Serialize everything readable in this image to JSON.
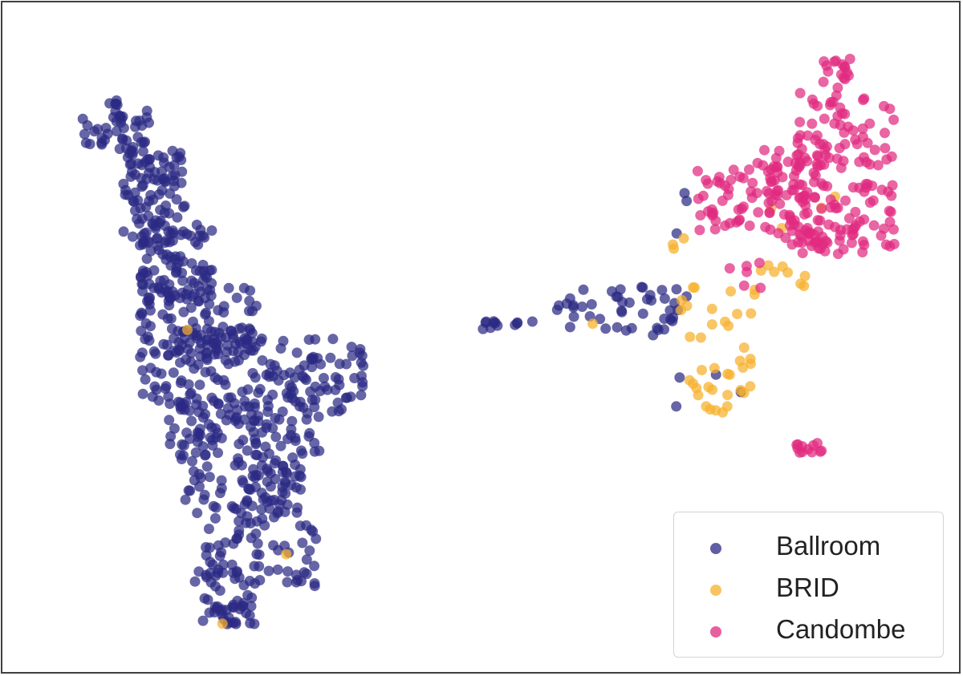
{
  "chart_data": {
    "type": "scatter",
    "title": "",
    "xlabel": "",
    "ylabel": "",
    "xlim": [
      0,
      100
    ],
    "ylim": [
      0,
      100
    ],
    "grid": false,
    "axes_ticks": false,
    "legend_position": "lower-right",
    "series": [
      {
        "name": "Ballroom",
        "color": "#2b2a84",
        "clusters": [
          {
            "x": [
              5,
              13
            ],
            "y": [
              80,
              88
            ],
            "n": 45
          },
          {
            "x": [
              10,
              17
            ],
            "y": [
              66,
              80
            ],
            "n": 90
          },
          {
            "x": [
              12,
              20
            ],
            "y": [
              56,
              68
            ],
            "n": 90
          },
          {
            "x": [
              12,
              25
            ],
            "y": [
              46,
              58
            ],
            "n": 110
          },
          {
            "x": [
              12,
              37
            ],
            "y": [
              38,
              50
            ],
            "n": 150
          },
          {
            "x": [
              15,
              32
            ],
            "y": [
              30,
              40
            ],
            "n": 110
          },
          {
            "x": [
              17,
              30
            ],
            "y": [
              20,
              30
            ],
            "n": 90
          },
          {
            "x": [
              18,
              32
            ],
            "y": [
              10,
              20
            ],
            "n": 70
          },
          {
            "x": [
              19,
              25
            ],
            "y": [
              4,
              10
            ],
            "n": 35
          },
          {
            "x": [
              50,
              56
            ],
            "y": [
              51,
              53
            ],
            "n": 12
          },
          {
            "x": [
              58,
              72
            ],
            "y": [
              50,
              58
            ],
            "n": 45
          },
          {
            "x": [
              71,
              79
            ],
            "y": [
              38,
              76
            ],
            "n": 8
          }
        ]
      },
      {
        "name": "BRID",
        "color": "#f6b02b",
        "clusters": [
          {
            "x": [
              72,
              80
            ],
            "y": [
              40,
              58
            ],
            "n": 30
          },
          {
            "x": [
              74,
              78
            ],
            "y": [
              37,
              42
            ],
            "n": 8
          },
          {
            "x": [
              80,
              86
            ],
            "y": [
              56,
              63
            ],
            "n": 10
          },
          {
            "x": [
              71,
              73
            ],
            "y": [
              63,
              67
            ],
            "n": 3
          },
          {
            "x": [
              82,
              90
            ],
            "y": [
              66,
              75
            ],
            "n": 4
          },
          {
            "x": [
              17,
              17.5
            ],
            "y": [
              51,
              51.5
            ],
            "n": 1
          },
          {
            "x": [
              28,
              28.5
            ],
            "y": [
              15,
              15.5
            ],
            "n": 1
          },
          {
            "x": [
              21,
              21.5
            ],
            "y": [
              4,
              4.5
            ],
            "n": 1
          },
          {
            "x": [
              62,
              62.5
            ],
            "y": [
              52,
              52.5
            ],
            "n": 1
          }
        ]
      },
      {
        "name": "Candombe",
        "color": "#e0297f",
        "clusters": [
          {
            "x": [
              88,
              91
            ],
            "y": [
              90,
              95
            ],
            "n": 15
          },
          {
            "x": [
              85,
              96
            ],
            "y": [
              77,
              90
            ],
            "n": 60
          },
          {
            "x": [
              80,
              89
            ],
            "y": [
              72,
              81
            ],
            "n": 40
          },
          {
            "x": [
              74,
              83
            ],
            "y": [
              67,
              77
            ],
            "n": 50
          },
          {
            "x": [
              82,
              96
            ],
            "y": [
              64,
              75
            ],
            "n": 90
          },
          {
            "x": [
              85,
              93
            ],
            "y": [
              63,
              68
            ],
            "n": 20
          },
          {
            "x": [
              75,
              82
            ],
            "y": [
              57,
              63
            ],
            "n": 6
          },
          {
            "x": [
              85,
              88
            ],
            "y": [
              31,
              33
            ],
            "n": 12
          }
        ]
      }
    ]
  },
  "legend": {
    "entries": [
      {
        "label": "Ballroom",
        "color": "#2b2a84"
      },
      {
        "label": "BRID",
        "color": "#f6b02b"
      },
      {
        "label": "Candombe",
        "color": "#e0297f"
      }
    ]
  }
}
